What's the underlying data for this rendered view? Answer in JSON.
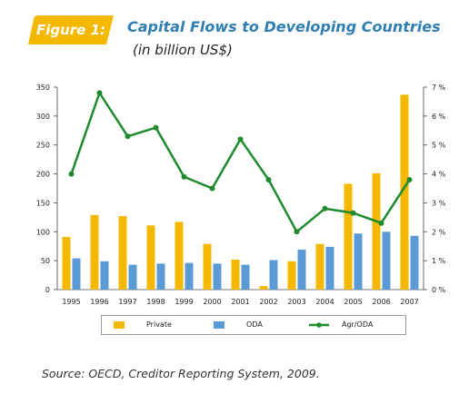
{
  "figure_label": "Figure 1:",
  "title": "Capital Flows to Developing Countries",
  "subtitle": "(in billion US$)",
  "source": "Source: OECD, Creditor Reporting System, 2009.",
  "colors": {
    "private": "#f5b800",
    "oda": "#5b9bd5",
    "agr_oda": "#1e8a2e",
    "title": "#2f7fb2",
    "badge": "#f5b800"
  },
  "legend": {
    "private": "Private",
    "oda": "ODA",
    "agr_oda": "Agr/ODA"
  },
  "chart_data": {
    "type": "bar",
    "categories": [
      "1995",
      "1996",
      "1997",
      "1998",
      "1999",
      "2000",
      "2001",
      "2002",
      "2003",
      "2004",
      "2005",
      "2006",
      "2007"
    ],
    "series": [
      {
        "name": "Private",
        "type": "bar",
        "axis": "left",
        "values": [
          91,
          129,
          127,
          111,
          117,
          79,
          52,
          6,
          49,
          79,
          183,
          201,
          337
        ]
      },
      {
        "name": "ODA",
        "type": "bar",
        "axis": "left",
        "values": [
          54,
          49,
          43,
          45,
          46,
          45,
          43,
          51,
          69,
          74,
          97,
          100,
          93
        ]
      },
      {
        "name": "Agr/ODA",
        "type": "line",
        "axis": "right",
        "values": [
          4.0,
          6.8,
          5.3,
          5.6,
          3.9,
          3.5,
          5.2,
          3.8,
          2.0,
          2.8,
          2.65,
          2.3,
          3.8
        ]
      }
    ],
    "y_left": {
      "range": [
        0,
        350
      ],
      "ticks": [
        "0",
        "50",
        "100",
        "150",
        "200",
        "250",
        "300",
        "350"
      ]
    },
    "y_right": {
      "range": [
        0,
        7
      ],
      "ticks": [
        "0 %",
        "1 %",
        "2 %",
        "3 %",
        "4 %",
        "5 %",
        "6 %",
        "7 %"
      ]
    },
    "grid": false,
    "legend_position": "bottom"
  }
}
